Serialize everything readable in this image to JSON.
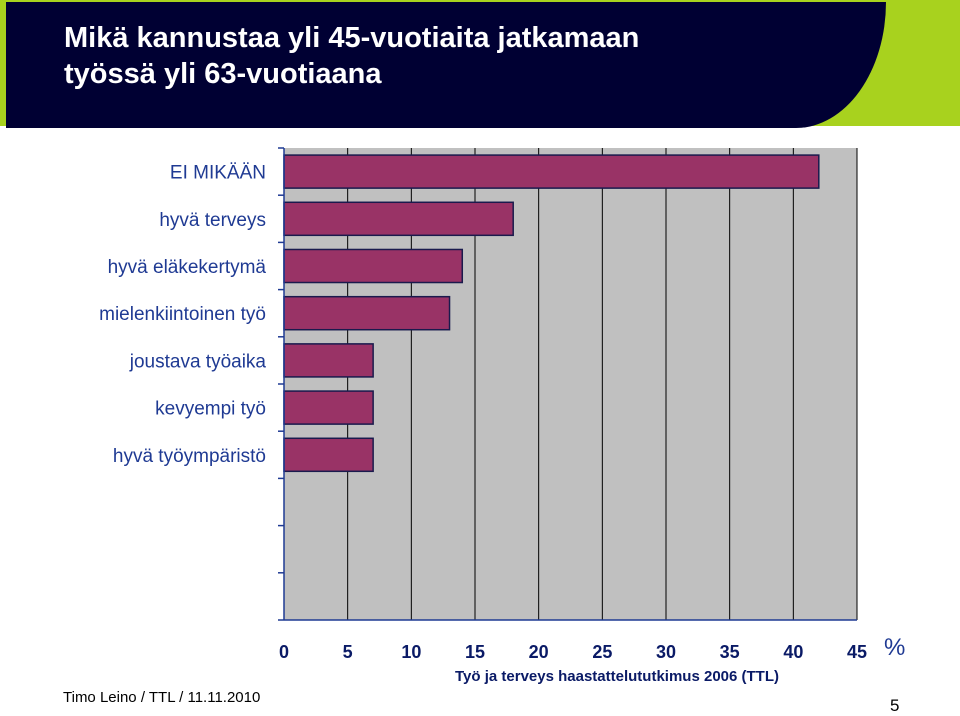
{
  "header": {
    "title_line1": "Mikä kannustaa yli 45-vuotiaita jatkamaan",
    "title_line2": "työssä yli 63-vuotiaana"
  },
  "colors": {
    "header_bg": "#000033",
    "accent_lime": "#a8d21e",
    "bar_fill": "#993366",
    "plot_bg": "#c0c0c0"
  },
  "chart_data": {
    "type": "bar",
    "orientation": "horizontal",
    "categories": [
      "EI MIKÄÄN",
      "hyvä terveys",
      "hyvä eläkekertymä",
      "mielenkiintoinen työ",
      "joustava työaika",
      "kevyempi työ",
      "hyvä työympäristö"
    ],
    "values": [
      42,
      18,
      14,
      13,
      7,
      7,
      7
    ],
    "slots": 10,
    "xlim": [
      0,
      45
    ],
    "xticks": [
      "0",
      "5",
      "10",
      "15",
      "20",
      "25",
      "30",
      "35",
      "40",
      "45"
    ],
    "xunit": "%",
    "grid": "vertical"
  },
  "footer": {
    "source": "Työ ja terveys haastattelututkimus 2006 (TTL)",
    "author": "Timo Leino / TTL / 11.11.2010",
    "page_number": "5"
  }
}
